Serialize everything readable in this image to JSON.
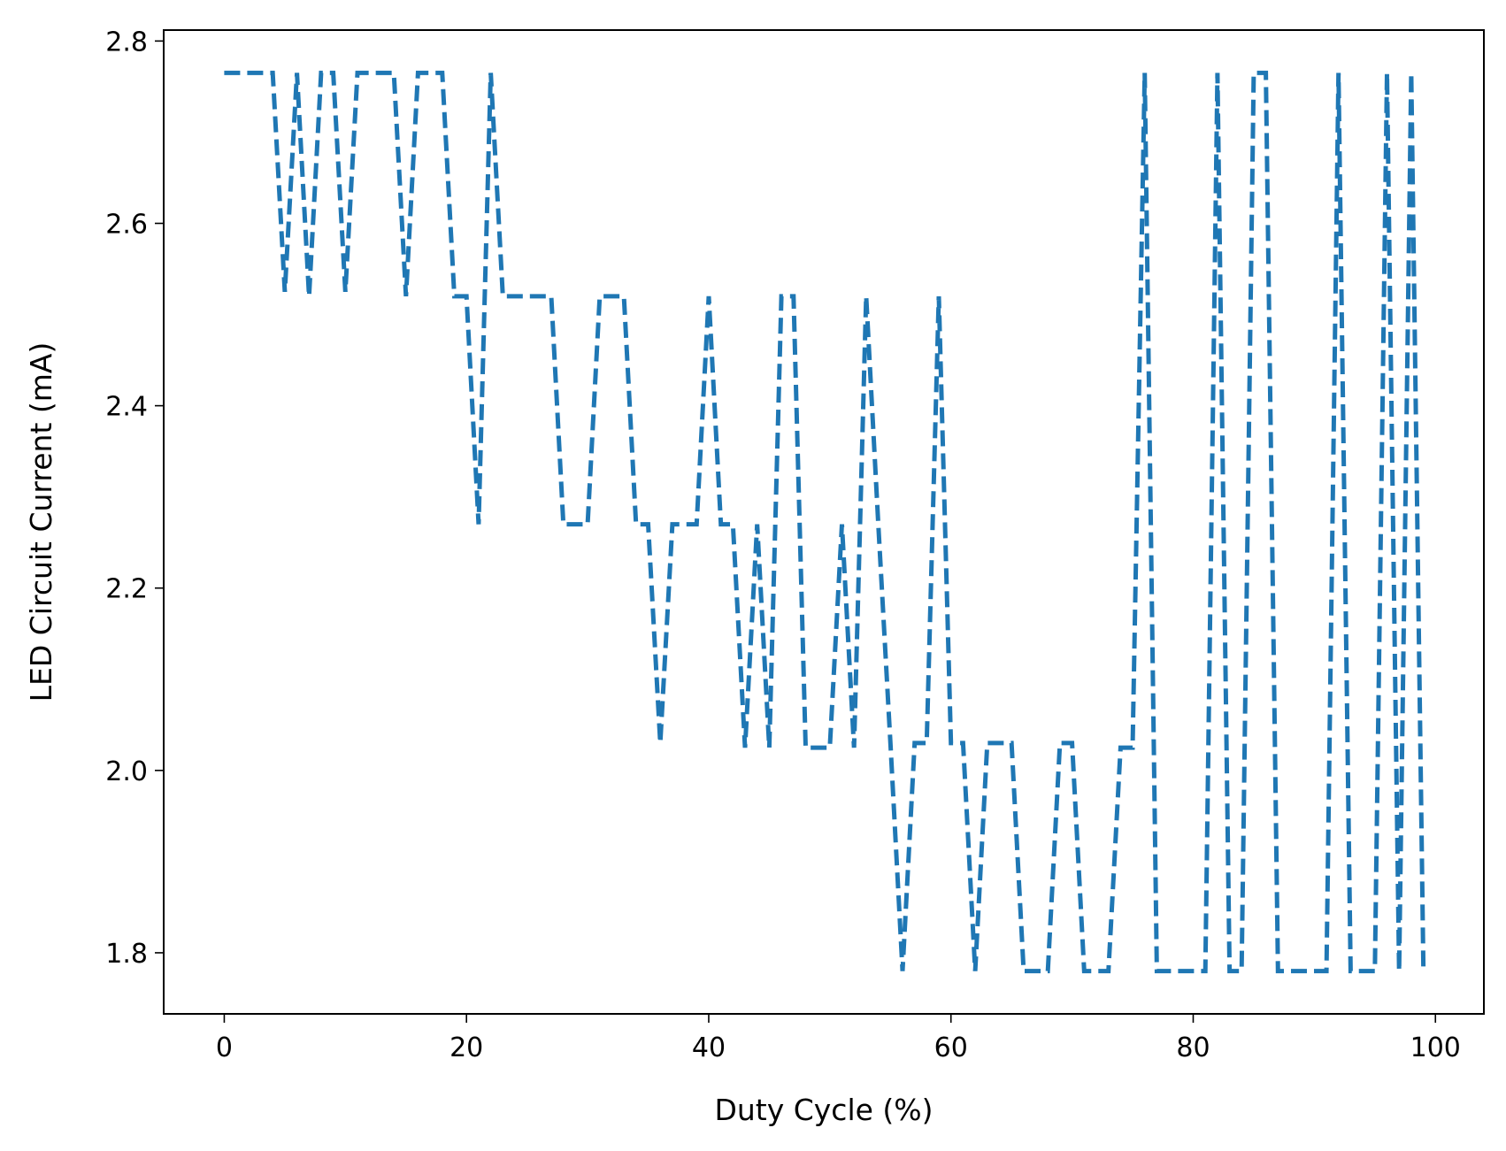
{
  "chart_data": {
    "type": "line",
    "title": "",
    "xlabel": "Duty Cycle (%)",
    "ylabel": "LED Circuit Current (mA)",
    "xlim": [
      -5,
      104
    ],
    "ylim": [
      1.733,
      2.812
    ],
    "x_ticks": [
      0,
      20,
      40,
      60,
      80,
      100
    ],
    "y_ticks": [
      1.8,
      2.0,
      2.2,
      2.4,
      2.6,
      2.8
    ],
    "x_tick_labels": [
      "0",
      "20",
      "40",
      "60",
      "80",
      "100"
    ],
    "y_tick_labels": [
      "1.8",
      "2.0",
      "2.2",
      "2.4",
      "2.6",
      "2.8"
    ],
    "grid": false,
    "legend": false,
    "line_style": "dashed",
    "line_color": "#1f77b4",
    "series": [
      {
        "x": [
          0,
          1,
          2,
          3,
          4,
          5,
          6,
          7,
          8,
          9,
          10,
          11,
          12,
          13,
          14,
          15,
          16,
          17,
          18,
          19,
          20,
          21,
          22,
          23,
          24,
          25,
          26,
          27,
          28,
          29,
          30,
          31,
          32,
          33,
          34,
          35,
          36,
          37,
          38,
          39,
          40,
          41,
          42,
          43,
          44,
          45,
          46,
          47,
          48,
          49,
          50,
          51,
          52,
          53,
          54,
          55,
          56,
          57,
          58,
          59,
          60,
          61,
          62,
          63,
          64,
          65,
          66,
          67,
          68,
          69,
          70,
          71,
          72,
          73,
          74,
          75,
          76,
          77,
          78,
          79,
          80,
          81,
          82,
          83,
          84,
          85,
          86,
          87,
          88,
          89,
          90,
          91,
          92,
          93,
          94,
          95,
          96,
          97,
          98,
          99
        ],
        "y": [
          2.765,
          2.765,
          2.765,
          2.765,
          2.765,
          2.525,
          2.765,
          2.52,
          2.765,
          2.765,
          2.525,
          2.765,
          2.765,
          2.765,
          2.765,
          2.52,
          2.765,
          2.765,
          2.765,
          2.52,
          2.52,
          2.27,
          2.765,
          2.52,
          2.52,
          2.52,
          2.52,
          2.52,
          2.27,
          2.27,
          2.27,
          2.52,
          2.52,
          2.52,
          2.27,
          2.27,
          2.03,
          2.27,
          2.27,
          2.27,
          2.52,
          2.27,
          2.27,
          2.025,
          2.27,
          2.025,
          2.52,
          2.52,
          2.025,
          2.025,
          2.025,
          2.27,
          2.025,
          2.52,
          2.27,
          2.03,
          1.78,
          2.03,
          2.03,
          2.52,
          2.03,
          2.03,
          1.78,
          2.03,
          2.03,
          2.03,
          1.78,
          1.78,
          1.78,
          2.03,
          2.03,
          1.78,
          1.78,
          1.78,
          2.025,
          2.025,
          2.765,
          1.78,
          1.78,
          1.78,
          1.78,
          1.78,
          2.765,
          1.78,
          1.78,
          2.765,
          2.765,
          1.78,
          1.78,
          1.78,
          1.78,
          1.78,
          2.765,
          1.78,
          1.78,
          1.78,
          2.765,
          1.78,
          2.765,
          1.785
        ]
      }
    ]
  }
}
